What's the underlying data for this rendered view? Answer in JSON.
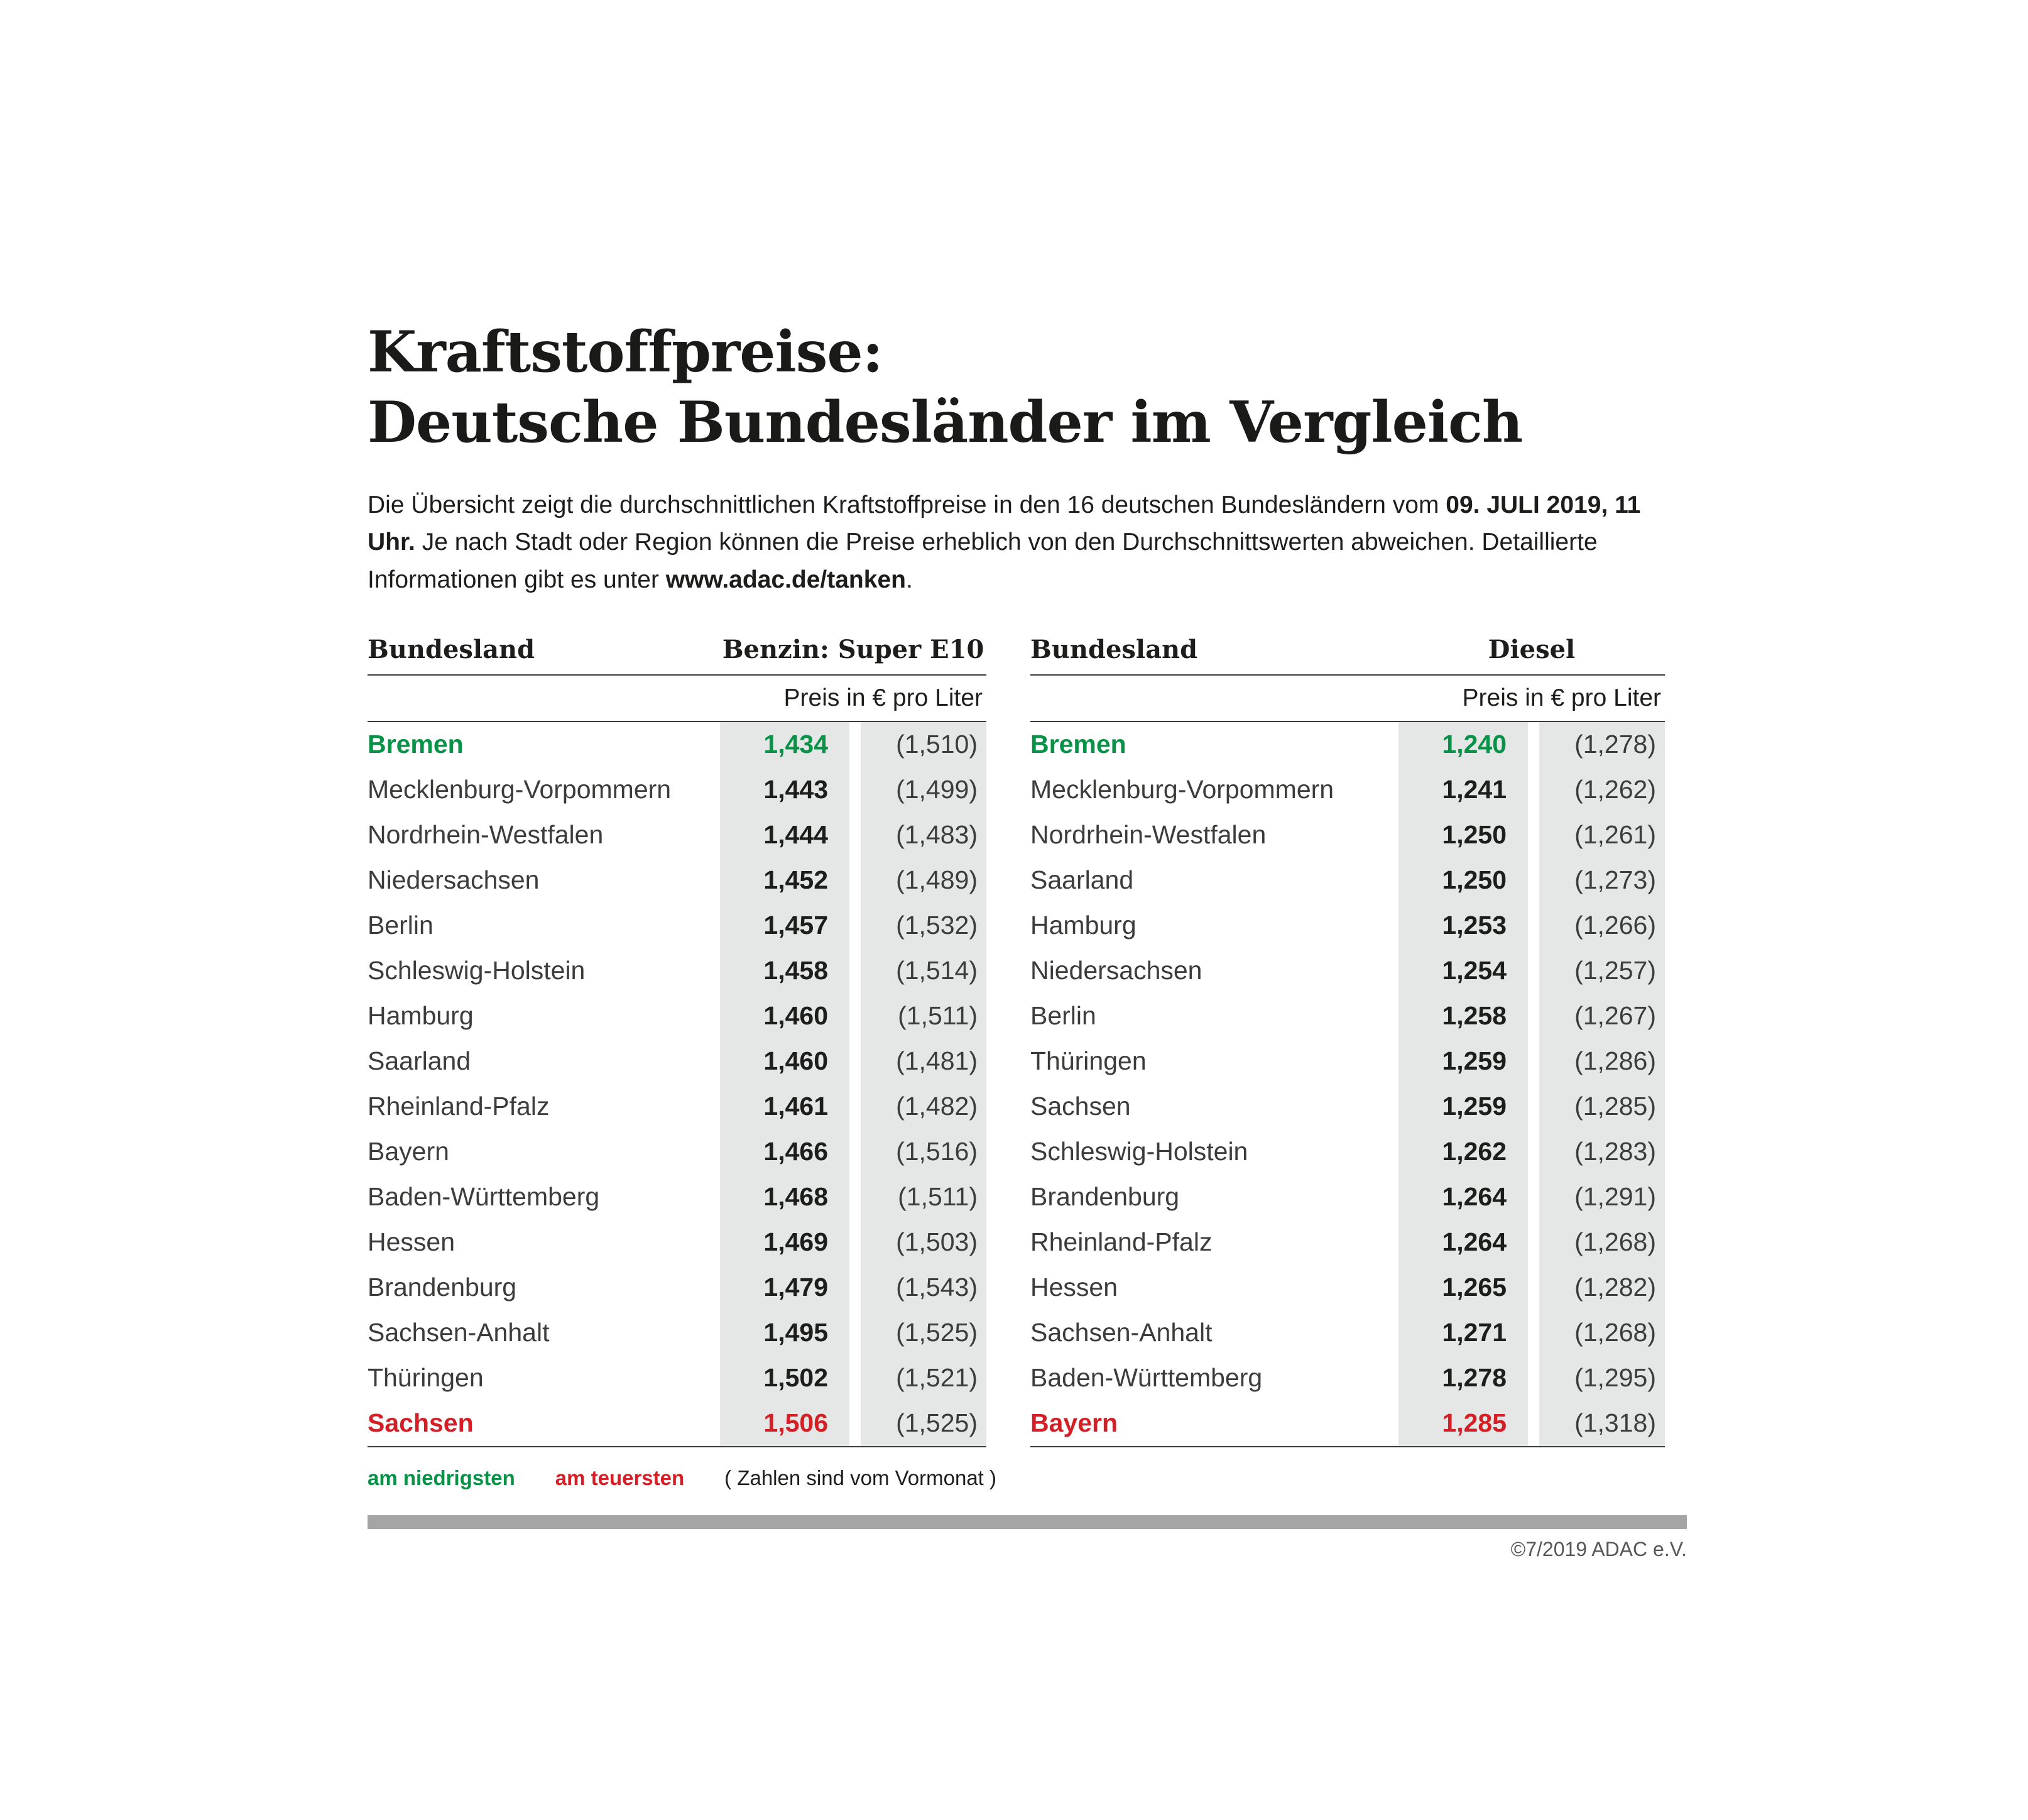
{
  "page": {
    "title_line1": "Kraftstoffpreise:",
    "title_line2": "Deutsche Bundesländer im Vergleich",
    "intro": {
      "part1": "Die Übersicht zeigt die durchschnittlichen Kraftstoffpreise in den 16 deutschen Bundesländern vom ",
      "bold_date": "09. JULI 2019, 11 Uhr.",
      "part2": " Je nach Stadt oder Region können die Preise erheblich von den Durchschnittswerten abweichen. Detaillierte Informationen gibt es unter ",
      "link": "www.adac.de/tanken",
      "part3": "."
    }
  },
  "tables": [
    {
      "col_header": "Bundesland",
      "fuel_header": "Benzin: Super E10",
      "price_header": "Preis in € pro Liter",
      "rows": [
        {
          "name": "Bremen",
          "price": "1,434",
          "prev": "(1,510)",
          "highlight": "lowest"
        },
        {
          "name": "Mecklenburg-Vorpommern",
          "price": "1,443",
          "prev": "(1,499)"
        },
        {
          "name": "Nordrhein-Westfalen",
          "price": "1,444",
          "prev": "(1,483)"
        },
        {
          "name": "Niedersachsen",
          "price": "1,452",
          "prev": "(1,489)"
        },
        {
          "name": "Berlin",
          "price": "1,457",
          "prev": "(1,532)"
        },
        {
          "name": "Schleswig-Holstein",
          "price": "1,458",
          "prev": "(1,514)"
        },
        {
          "name": "Hamburg",
          "price": "1,460",
          "prev": "(1,511)"
        },
        {
          "name": "Saarland",
          "price": "1,460",
          "prev": "(1,481)"
        },
        {
          "name": "Rheinland-Pfalz",
          "price": "1,461",
          "prev": "(1,482)"
        },
        {
          "name": "Bayern",
          "price": "1,466",
          "prev": "(1,516)"
        },
        {
          "name": "Baden-Württemberg",
          "price": "1,468",
          "prev": "(1,511)"
        },
        {
          "name": "Hessen",
          "price": "1,469",
          "prev": "(1,503)"
        },
        {
          "name": "Brandenburg",
          "price": "1,479",
          "prev": "(1,543)"
        },
        {
          "name": "Sachsen-Anhalt",
          "price": "1,495",
          "prev": "(1,525)"
        },
        {
          "name": "Thüringen",
          "price": "1,502",
          "prev": "(1,521)"
        },
        {
          "name": "Sachsen",
          "price": "1,506",
          "prev": "(1,525)",
          "highlight": "highest"
        }
      ]
    },
    {
      "col_header": "Bundesland",
      "fuel_header": "Diesel",
      "price_header": "Preis in € pro Liter",
      "rows": [
        {
          "name": "Bremen",
          "price": "1,240",
          "prev": "(1,278)",
          "highlight": "lowest"
        },
        {
          "name": "Mecklenburg-Vorpommern",
          "price": "1,241",
          "prev": "(1,262)"
        },
        {
          "name": "Nordrhein-Westfalen",
          "price": "1,250",
          "prev": "(1,261)"
        },
        {
          "name": "Saarland",
          "price": "1,250",
          "prev": "(1,273)"
        },
        {
          "name": "Hamburg",
          "price": "1,253",
          "prev": "(1,266)"
        },
        {
          "name": "Niedersachsen",
          "price": "1,254",
          "prev": "(1,257)"
        },
        {
          "name": "Berlin",
          "price": "1,258",
          "prev": "(1,267)"
        },
        {
          "name": "Thüringen",
          "price": "1,259",
          "prev": "(1,286)"
        },
        {
          "name": "Sachsen",
          "price": "1,259",
          "prev": "(1,285)"
        },
        {
          "name": "Schleswig-Holstein",
          "price": "1,262",
          "prev": "(1,283)"
        },
        {
          "name": "Brandenburg",
          "price": "1,264",
          "prev": "(1,291)"
        },
        {
          "name": "Rheinland-Pfalz",
          "price": "1,264",
          "prev": "(1,268)"
        },
        {
          "name": "Hessen",
          "price": "1,265",
          "prev": "(1,282)"
        },
        {
          "name": "Sachsen-Anhalt",
          "price": "1,271",
          "prev": "(1,268)"
        },
        {
          "name": "Baden-Württemberg",
          "price": "1,278",
          "prev": "(1,295)"
        },
        {
          "name": "Bayern",
          "price": "1,285",
          "prev": "(1,318)",
          "highlight": "highest"
        }
      ]
    }
  ],
  "legend": {
    "lowest": "am niedrigsten",
    "highest": "am teuersten",
    "note": "( Zahlen sind vom Vormonat )"
  },
  "footer": {
    "copyright": "©7/2019 ADAC e.V."
  },
  "colors": {
    "green": "#089247",
    "red": "#d41f26",
    "band": "#e4e7e6",
    "rule": "#3c3c3b",
    "bar": "#a5a5a5",
    "text": "#1d1d1b"
  },
  "chart_data": [
    {
      "type": "table",
      "title": "Benzin: Super E10 — Preis in € pro Liter (09. Juli 2019, 11 Uhr)",
      "columns": [
        "Bundesland",
        "Preis",
        "Vormonat"
      ],
      "rows": [
        [
          "Bremen",
          1.434,
          1.51
        ],
        [
          "Mecklenburg-Vorpommern",
          1.443,
          1.499
        ],
        [
          "Nordrhein-Westfalen",
          1.444,
          1.483
        ],
        [
          "Niedersachsen",
          1.452,
          1.489
        ],
        [
          "Berlin",
          1.457,
          1.532
        ],
        [
          "Schleswig-Holstein",
          1.458,
          1.514
        ],
        [
          "Hamburg",
          1.46,
          1.511
        ],
        [
          "Saarland",
          1.46,
          1.481
        ],
        [
          "Rheinland-Pfalz",
          1.461,
          1.482
        ],
        [
          "Bayern",
          1.466,
          1.516
        ],
        [
          "Baden-Württemberg",
          1.468,
          1.511
        ],
        [
          "Hessen",
          1.469,
          1.503
        ],
        [
          "Brandenburg",
          1.479,
          1.543
        ],
        [
          "Sachsen-Anhalt",
          1.495,
          1.525
        ],
        [
          "Thüringen",
          1.502,
          1.521
        ],
        [
          "Sachsen",
          1.506,
          1.525
        ]
      ],
      "annotations": {
        "lowest": "Bremen",
        "highest": "Sachsen"
      }
    },
    {
      "type": "table",
      "title": "Diesel — Preis in € pro Liter (09. Juli 2019, 11 Uhr)",
      "columns": [
        "Bundesland",
        "Preis",
        "Vormonat"
      ],
      "rows": [
        [
          "Bremen",
          1.24,
          1.278
        ],
        [
          "Mecklenburg-Vorpommern",
          1.241,
          1.262
        ],
        [
          "Nordrhein-Westfalen",
          1.25,
          1.261
        ],
        [
          "Saarland",
          1.25,
          1.273
        ],
        [
          "Hamburg",
          1.253,
          1.266
        ],
        [
          "Niedersachsen",
          1.254,
          1.257
        ],
        [
          "Berlin",
          1.258,
          1.267
        ],
        [
          "Thüringen",
          1.259,
          1.286
        ],
        [
          "Sachsen",
          1.259,
          1.285
        ],
        [
          "Schleswig-Holstein",
          1.262,
          1.283
        ],
        [
          "Brandenburg",
          1.264,
          1.291
        ],
        [
          "Rheinland-Pfalz",
          1.264,
          1.268
        ],
        [
          "Hessen",
          1.265,
          1.282
        ],
        [
          "Sachsen-Anhalt",
          1.271,
          1.268
        ],
        [
          "Baden-Württemberg",
          1.278,
          1.295
        ],
        [
          "Bayern",
          1.285,
          1.318
        ]
      ],
      "annotations": {
        "lowest": "Bremen",
        "highest": "Bayern"
      }
    }
  ]
}
